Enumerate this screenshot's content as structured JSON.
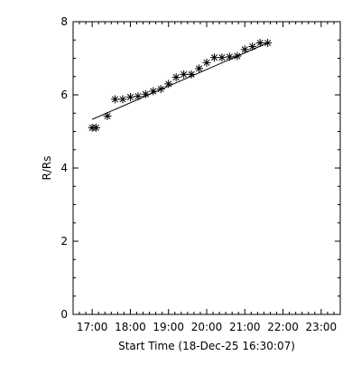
{
  "chart_data": {
    "type": "scatter",
    "title": "",
    "xlabel": "Start Time (18-Dec-25 16:30:07)",
    "ylabel": "R/Rs",
    "xlim": [
      "16:30",
      "23:30"
    ],
    "ylim": [
      0,
      8
    ],
    "x_ticks": [
      "17:00",
      "18:00",
      "19:00",
      "20:00",
      "21:00",
      "22:00",
      "23:00"
    ],
    "y_ticks": [
      "0",
      "2",
      "4",
      "6",
      "8"
    ],
    "grid": false,
    "marker": "asterisk",
    "points": [
      {
        "x": "17:00",
        "y": 5.1
      },
      {
        "x": "17:06",
        "y": 5.1
      },
      {
        "x": "17:24",
        "y": 5.42
      },
      {
        "x": "17:36",
        "y": 5.88
      },
      {
        "x": "17:48",
        "y": 5.88
      },
      {
        "x": "18:00",
        "y": 5.94
      },
      {
        "x": "18:12",
        "y": 5.96
      },
      {
        "x": "18:24",
        "y": 6.02
      },
      {
        "x": "18:36",
        "y": 6.1
      },
      {
        "x": "18:48",
        "y": 6.16
      },
      {
        "x": "19:00",
        "y": 6.3
      },
      {
        "x": "19:12",
        "y": 6.48
      },
      {
        "x": "19:24",
        "y": 6.56
      },
      {
        "x": "19:36",
        "y": 6.56
      },
      {
        "x": "19:48",
        "y": 6.72
      },
      {
        "x": "20:00",
        "y": 6.88
      },
      {
        "x": "20:12",
        "y": 7.02
      },
      {
        "x": "20:24",
        "y": 7.02
      },
      {
        "x": "20:36",
        "y": 7.04
      },
      {
        "x": "20:48",
        "y": 7.06
      },
      {
        "x": "21:00",
        "y": 7.24
      },
      {
        "x": "21:12",
        "y": 7.32
      },
      {
        "x": "21:24",
        "y": 7.42
      },
      {
        "x": "21:36",
        "y": 7.42
      }
    ],
    "fit_line": {
      "start": {
        "x": "17:00",
        "y": 5.33
      },
      "end": {
        "x": "21:36",
        "y": 7.42
      }
    }
  }
}
